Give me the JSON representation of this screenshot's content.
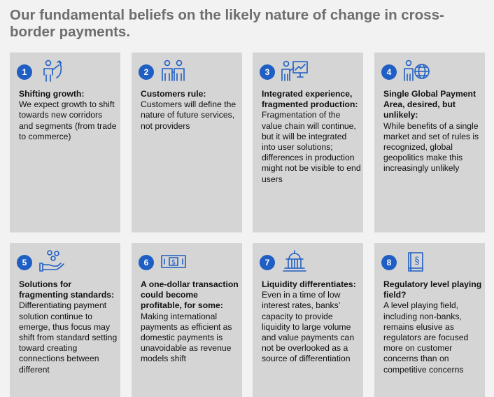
{
  "title": "Our fundamental beliefs on the likely nature of change in cross-border payments.",
  "colors": {
    "accent": "#1f5fc4",
    "card_bg": "#d5d5d5",
    "page_bg": "#f2f2f2",
    "title": "#6e6e6e"
  },
  "cards": [
    {
      "number": "1",
      "icon": "person-growth-arrow-icon",
      "heading": "Shifting growth:",
      "body": "We expect growth to shift towards new corridors and segments (from trade to commerce)"
    },
    {
      "number": "2",
      "icon": "two-people-icon",
      "heading": "Customers rule:",
      "body": "Customers will define the nature of future services, not providers"
    },
    {
      "number": "3",
      "icon": "presenter-board-icon",
      "heading": "Integrated experience, fragmented production:",
      "body": "Fragmentation of the value chain will continue, but it will be integrated into user solutions; differences in production might not be visible to end users"
    },
    {
      "number": "4",
      "icon": "person-globe-icon",
      "heading": "Single Global Payment Area, desired, but unlikely:",
      "body": "While benefits of a single market and set of rules is recognized, global geopolitics make this increasingly unlikely"
    },
    {
      "number": "5",
      "icon": "hand-coins-icon",
      "heading": "Solutions for fragmenting standards:",
      "body": "Differentiating payment solution continue to emerge, thus focus may shift from standard setting toward creating connections between different"
    },
    {
      "number": "6",
      "icon": "dollar-bill-icon",
      "heading": "A one-dollar transaction could become profitable, for some:",
      "body": "Making international payments as efficient as domestic payments is unavoidable as revenue models shift"
    },
    {
      "number": "7",
      "icon": "bank-building-icon",
      "heading": "Liquidity differentiates:",
      "body": "Even in a time of low interest rates, banks’ capacity to provide liquidity to large volume and value payments can not be overlooked as a source of differentiation"
    },
    {
      "number": "8",
      "icon": "regulation-book-icon",
      "heading": "Regulatory level playing field?",
      "body": "A level playing field, including non-banks, remains elusive as regulators are focused more on customer concerns than on competitive concerns"
    }
  ]
}
